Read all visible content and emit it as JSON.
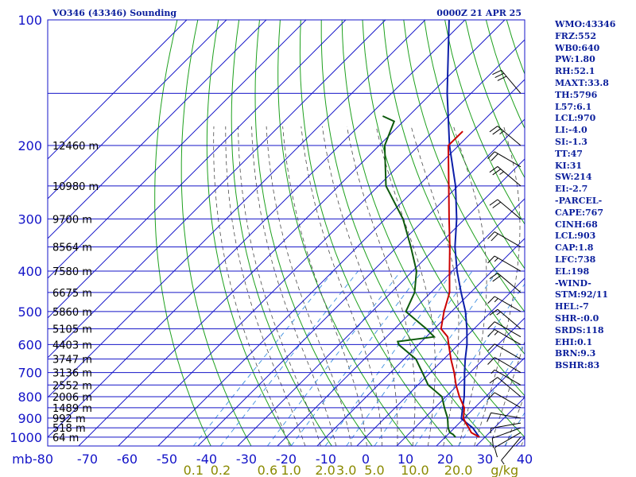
{
  "header": {
    "station": "VO346 (43346) Sounding",
    "time": "0000Z 21 APR 25"
  },
  "indices": [
    "WMO:43346",
    "FRZ:552",
    "WB0:640",
    "PW:1.80",
    "RH:52.1",
    "MAXT:33.8",
    "TH:5796",
    "L57:6.1",
    "LCL:970",
    "LI:-4.0",
    "SI:-1.3",
    "TT:47",
    "KI:31",
    "SW:214",
    "EI:-2.7",
    "-PARCEL-",
    "CAPE:767",
    "CINH:68",
    "LCL:903",
    "CAP:1.8",
    "LFC:738",
    "EL:198",
    "-WIND-",
    "STM:92/11",
    "HEL:-7",
    "SHR-:0.0",
    "SRDS:118",
    "EHI:0.1",
    "BRN:9.3",
    "BSHR:83"
  ],
  "colors": {
    "isobar": "#1414c8",
    "isotherm": "#1414c8",
    "dry_adiabat": "#1ea01e",
    "moist_adiabat": "#4a4a4a",
    "mixing_ratio": "#3c8fe0",
    "temperature": "#cc0000",
    "dewpoint": "#0c5a0c",
    "parcel": "#0c1ea8",
    "wind_barb": "#000000"
  },
  "chart_data": {
    "type": "skew-t",
    "y_scale": "log",
    "pressure_unit": "mb",
    "temperature_unit": "°C",
    "pressure_range": [
      100,
      1050
    ],
    "temperature_range": [
      -80,
      40
    ],
    "pressure_ticks": [
      100,
      200,
      300,
      400,
      500,
      600,
      700,
      800,
      900,
      1000
    ],
    "isobars": [
      100,
      150,
      200,
      250,
      300,
      350,
      400,
      450,
      500,
      550,
      600,
      650,
      700,
      750,
      800,
      850,
      900,
      950,
      1000
    ],
    "temperature_ticks": [
      -80,
      -70,
      -60,
      -50,
      -40,
      -30,
      -20,
      -10,
      0,
      10,
      20,
      30,
      40
    ],
    "temperature_tick_labels": [
      "mb-80",
      "-70",
      "-60",
      "-50",
      "-40",
      "-30",
      "-20",
      "-10",
      "0",
      "10",
      "20",
      "30",
      "40"
    ],
    "mixing_ratio_labels": [
      {
        "label": "0.1",
        "value": 0.1
      },
      {
        "label": "0.2",
        "value": 0.2
      },
      {
        "label": "0.6",
        "value": 0.6
      },
      {
        "label": "1.0",
        "value": 1.0
      },
      {
        "label": "2.0",
        "value": 2.0
      },
      {
        "label": "3.0",
        "value": 3.0
      },
      {
        "label": "5.0",
        "value": 5.0
      },
      {
        "label": "10.0",
        "value": 10.0
      },
      {
        "label": "20.0",
        "value": 20.0
      },
      {
        "label": "g/kg",
        "value": 40.0
      }
    ],
    "height_labels": [
      {
        "p": 200,
        "label": "12460 m"
      },
      {
        "p": 250,
        "label": "10980 m"
      },
      {
        "p": 300,
        "label": "9700 m"
      },
      {
        "p": 350,
        "label": "8564 m"
      },
      {
        "p": 400,
        "label": "7580 m"
      },
      {
        "p": 450,
        "label": "6675 m"
      },
      {
        "p": 500,
        "label": "5860 m"
      },
      {
        "p": 550,
        "label": "5105 m"
      },
      {
        "p": 600,
        "label": "4403 m"
      },
      {
        "p": 650,
        "label": "3747 m"
      },
      {
        "p": 700,
        "label": "3136 m"
      },
      {
        "p": 750,
        "label": "2552 m"
      },
      {
        "p": 800,
        "label": "2006 m"
      },
      {
        "p": 850,
        "label": "1489 m"
      },
      {
        "p": 900,
        "label": "992 m"
      },
      {
        "p": 950,
        "label": "518 m"
      },
      {
        "p": 1000,
        "label": "64 m"
      }
    ],
    "series": [
      {
        "name": "Temperature",
        "points": [
          [
            1000,
            28.6
          ],
          [
            975,
            25.4
          ],
          [
            950,
            23.6
          ],
          [
            925,
            21.6
          ],
          [
            900,
            19.8
          ],
          [
            850,
            17.4
          ],
          [
            800,
            13.4
          ],
          [
            750,
            9.6
          ],
          [
            700,
            6.0
          ],
          [
            650,
            1.8
          ],
          [
            600,
            -2.4
          ],
          [
            575,
            -4.6
          ],
          [
            550,
            -8.3
          ],
          [
            500,
            -11.9
          ],
          [
            450,
            -15.3
          ],
          [
            400,
            -20.7
          ],
          [
            350,
            -26.7
          ],
          [
            300,
            -33.9
          ],
          [
            250,
            -42.3
          ],
          [
            200,
            -52.6
          ],
          [
            185,
            -52.5
          ]
        ]
      },
      {
        "name": "Dewpoint",
        "points": [
          [
            1000,
            22.6
          ],
          [
            985,
            21.3
          ],
          [
            975,
            20.0
          ],
          [
            950,
            18.4
          ],
          [
            900,
            15.8
          ],
          [
            850,
            12.4
          ],
          [
            800,
            9.0
          ],
          [
            750,
            2.6
          ],
          [
            700,
            -2.0
          ],
          [
            650,
            -7.0
          ],
          [
            600,
            -15.0
          ],
          [
            590,
            -16.0
          ],
          [
            575,
            -8.0
          ],
          [
            550,
            -12.0
          ],
          [
            500,
            -21.5
          ],
          [
            450,
            -24.1
          ],
          [
            400,
            -29.0
          ],
          [
            350,
            -36.5
          ],
          [
            300,
            -45.5
          ],
          [
            250,
            -58.1
          ],
          [
            200,
            -68.6
          ],
          [
            175,
            -72.3
          ],
          [
            170,
            -76.5
          ]
        ]
      },
      {
        "name": "Parcel",
        "points": [
          [
            1000,
            28.6
          ],
          [
            975,
            26.6
          ],
          [
            950,
            24.6
          ],
          [
            903,
            19.4
          ],
          [
            850,
            17.0
          ],
          [
            800,
            14.6
          ],
          [
            738,
            11.0
          ],
          [
            700,
            8.6
          ],
          [
            650,
            5.4
          ],
          [
            600,
            2.2
          ],
          [
            550,
            -1.8
          ],
          [
            500,
            -6.5
          ],
          [
            450,
            -12.4
          ],
          [
            400,
            -18.8
          ],
          [
            350,
            -25.4
          ],
          [
            300,
            -32.0
          ],
          [
            250,
            -40.6
          ],
          [
            200,
            -52.3
          ],
          [
            150,
            -66.0
          ],
          [
            100,
            -84.0
          ]
        ]
      }
    ],
    "winds": [
      {
        "p": 1000,
        "dir": 220,
        "spd": 5
      },
      {
        "p": 975,
        "dir": 240,
        "spd": 10
      },
      {
        "p": 950,
        "dir": 250,
        "spd": 10
      },
      {
        "p": 925,
        "dir": 260,
        "spd": 5
      },
      {
        "p": 900,
        "dir": 280,
        "spd": 10
      },
      {
        "p": 850,
        "dir": 300,
        "spd": 10
      },
      {
        "p": 800,
        "dir": 310,
        "spd": 10
      },
      {
        "p": 750,
        "dir": 300,
        "spd": 5
      },
      {
        "p": 700,
        "dir": 300,
        "spd": 10
      },
      {
        "p": 650,
        "dir": 300,
        "spd": 10
      },
      {
        "p": 600,
        "dir": 300,
        "spd": 15
      },
      {
        "p": 575,
        "dir": 300,
        "spd": 10
      },
      {
        "p": 550,
        "dir": 310,
        "spd": 15
      },
      {
        "p": 500,
        "dir": 300,
        "spd": 15
      },
      {
        "p": 450,
        "dir": 310,
        "spd": 20
      },
      {
        "p": 400,
        "dir": 300,
        "spd": 15
      },
      {
        "p": 350,
        "dir": 300,
        "spd": 20
      },
      {
        "p": 300,
        "dir": 310,
        "spd": 20
      },
      {
        "p": 250,
        "dir": 310,
        "spd": 25
      },
      {
        "p": 225,
        "dir": 300,
        "spd": 20
      },
      {
        "p": 200,
        "dir": 310,
        "spd": 25
      },
      {
        "p": 150,
        "dir": 320,
        "spd": 30
      }
    ]
  }
}
